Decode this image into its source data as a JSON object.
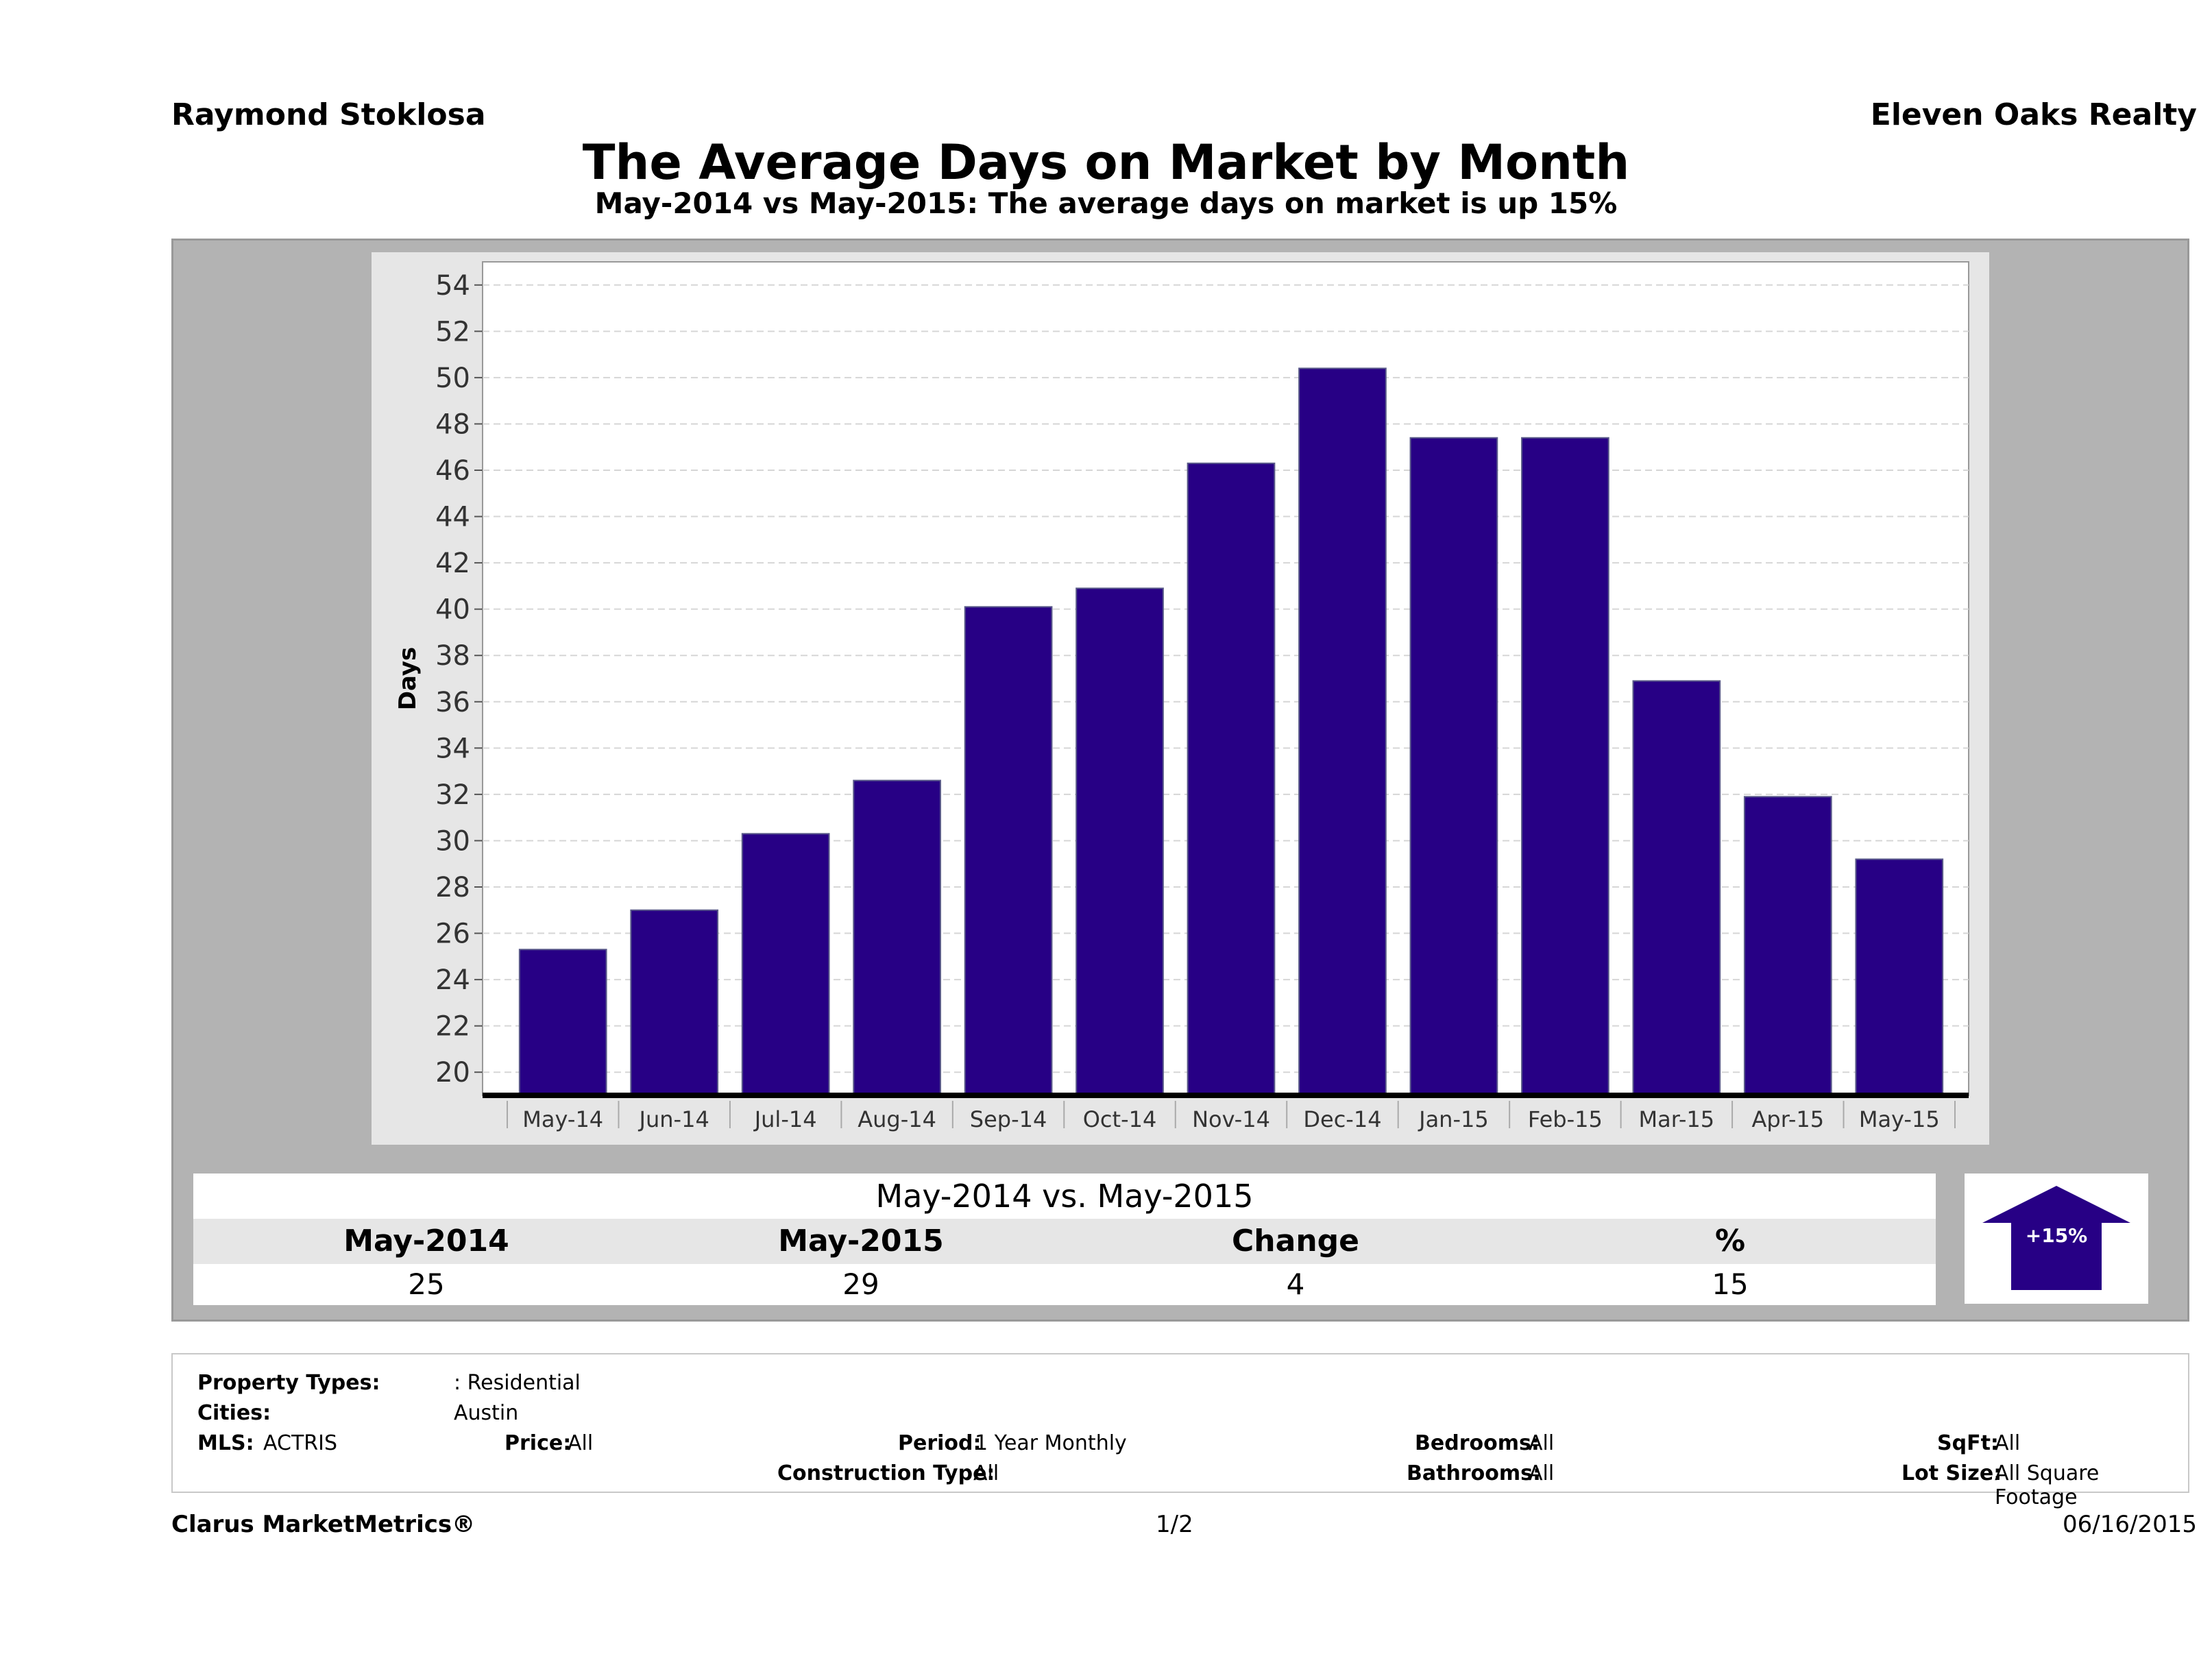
{
  "header": {
    "agent_name": "Raymond Stoklosa",
    "brokerage": "Eleven Oaks Realty",
    "title": "The Average Days on Market by Month",
    "subtitle": "May-2014 vs May-2015: The average days on market is up 15%"
  },
  "colors": {
    "bar": "#270085",
    "arrow": "#270085",
    "panel": "#b3b3b3"
  },
  "chart_data": {
    "type": "bar",
    "categories": [
      "May-14",
      "Jun-14",
      "Jul-14",
      "Aug-14",
      "Sep-14",
      "Oct-14",
      "Nov-14",
      "Dec-14",
      "Jan-15",
      "Feb-15",
      "Mar-15",
      "Apr-15",
      "May-15"
    ],
    "values": [
      25.3,
      27.0,
      30.3,
      32.6,
      40.1,
      40.9,
      46.3,
      50.4,
      47.4,
      47.4,
      36.9,
      31.9,
      29.2
    ],
    "ylabel": "Days",
    "ylim": [
      19,
      55
    ],
    "yticks": [
      20,
      22,
      24,
      26,
      28,
      30,
      32,
      34,
      36,
      38,
      40,
      42,
      44,
      46,
      48,
      50,
      52,
      54
    ],
    "grid": true
  },
  "comparison": {
    "title": "May-2014 vs. May-2015",
    "headers": [
      "May-2014",
      "May-2015",
      "Change",
      "%"
    ],
    "values": [
      "25",
      "29",
      "4",
      "15"
    ],
    "arrow_label": "+15%",
    "arrow_icon": "up-arrow-icon"
  },
  "criteria": {
    "property_types_label": "Property Types:",
    "property_types_value": ": Residential",
    "cities_label": "Cities:",
    "cities_value": "Austin",
    "mls_label": "MLS:",
    "mls_value": "ACTRIS",
    "price_label": "Price:",
    "price_value": "All",
    "period_label": "Period:",
    "period_value": "1 Year Monthly",
    "construction_label": "Construction Type:",
    "construction_value": "All",
    "bedrooms_label": "Bedrooms:",
    "bedrooms_value": "All",
    "bathrooms_label": "Bathrooms:",
    "bathrooms_value": "All",
    "sqft_label": "SqFt:",
    "sqft_value": "All",
    "lotsize_label": "Lot Size:",
    "lotsize_value": "All Square Footage"
  },
  "footer": {
    "brand": "Clarus MarketMetrics®",
    "page": "1/2",
    "date": "06/16/2015"
  }
}
